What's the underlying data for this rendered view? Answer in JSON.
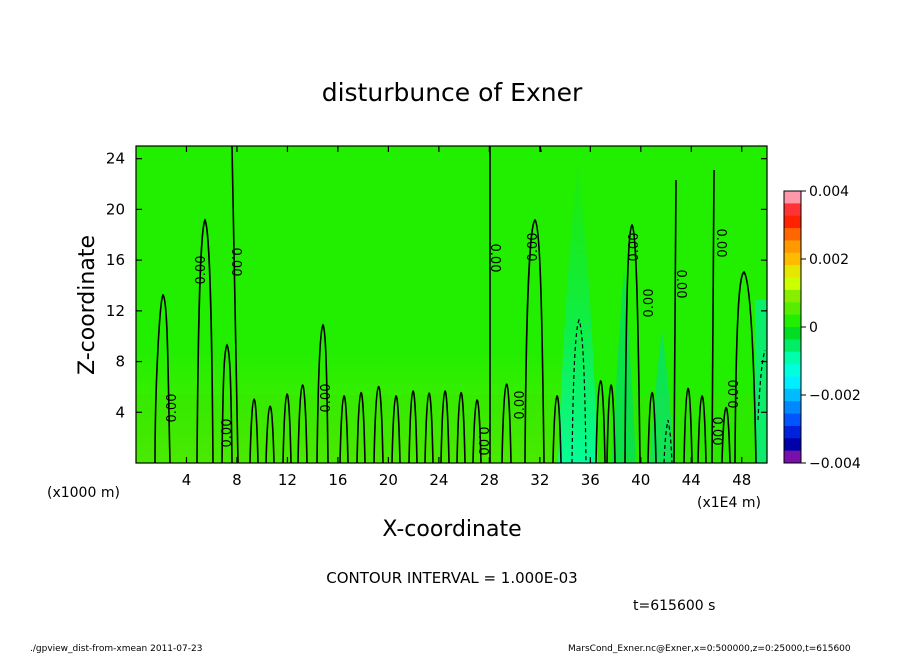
{
  "chart_data": {
    "type": "heatmap",
    "title": "disturbunce of Exner",
    "xlabel": "X-coordinate",
    "ylabel": "Z-coordinate",
    "x_unit_left": "(x1000 m)",
    "x_unit_right": "(x1E4 m)",
    "xlim": [
      0,
      50
    ],
    "ylim": [
      0,
      25
    ],
    "x_ticks": [
      "4",
      "8",
      "12",
      "16",
      "20",
      "24",
      "28",
      "32",
      "36",
      "40",
      "44",
      "48"
    ],
    "y_ticks": [
      "4",
      "8",
      "12",
      "16",
      "20",
      "24"
    ],
    "colorbar": {
      "ticks": [
        "0.004",
        "0.002",
        "0",
        "−0.002",
        "−0.004"
      ],
      "range": [
        -0.004,
        0.004
      ],
      "levels": [
        {
          "color": "#ff99aa"
        },
        {
          "color": "#ff3333"
        },
        {
          "color": "#ff2200"
        },
        {
          "color": "#ff6600"
        },
        {
          "color": "#ff9900"
        },
        {
          "color": "#ffbb00"
        },
        {
          "color": "#e6e600"
        },
        {
          "color": "#ccff00"
        },
        {
          "color": "#88ee00"
        },
        {
          "color": "#55ee00"
        },
        {
          "color": "#22ee00"
        },
        {
          "color": "#00dd22"
        },
        {
          "color": "#00ee66"
        },
        {
          "color": "#00ffaa"
        },
        {
          "color": "#00ffdd"
        },
        {
          "color": "#00eeff"
        },
        {
          "color": "#00bbff"
        },
        {
          "color": "#0088ff"
        },
        {
          "color": "#0055ff"
        },
        {
          "color": "#0022dd"
        },
        {
          "color": "#0000aa"
        },
        {
          "color": "#7711aa"
        }
      ]
    },
    "background_color": "#22ee00",
    "contour_label": "0.00",
    "contour_interval_text": "CONTOUR INTERVAL = 1.000E-03",
    "time_text": "t=615600 s"
  },
  "footer": {
    "left": "./gpview_dist-from-xmean 2011-07-23",
    "right": "MarsCond_Exner.nc@Exner,x=0:500000,z=0:25000,t=615600"
  }
}
